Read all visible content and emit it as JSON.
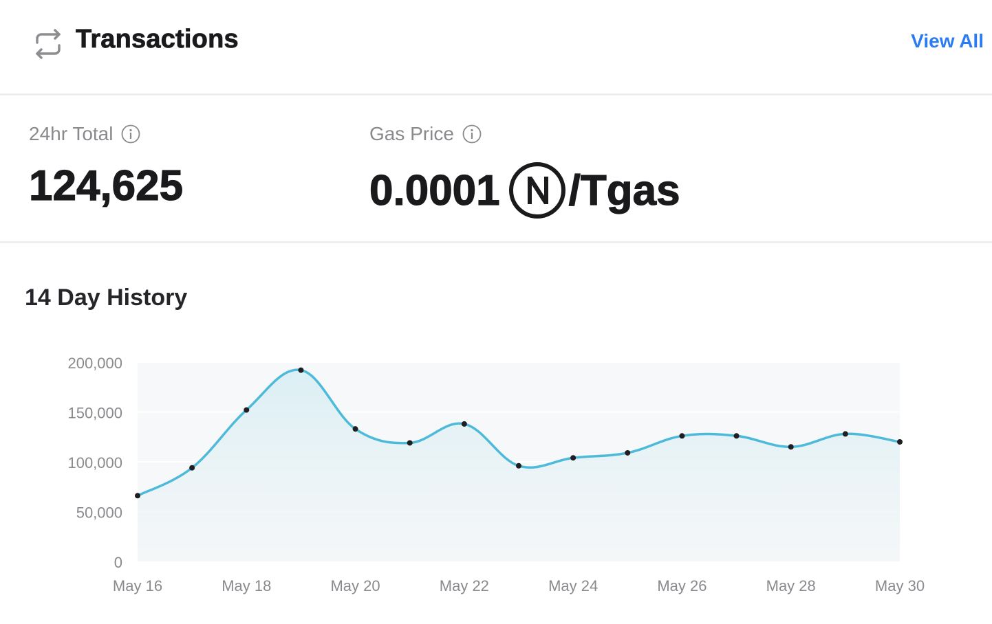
{
  "header": {
    "title": "Transactions",
    "view_all_label": "View All",
    "icon": "repeat-arrows-icon"
  },
  "stats": {
    "total": {
      "label": "24hr Total",
      "value": "124,625",
      "info_icon": "info-icon"
    },
    "gas": {
      "label": "Gas Price",
      "value": "0.0001",
      "unit": "/Tgas",
      "token_icon": "near-token-icon",
      "info_icon": "info-icon"
    }
  },
  "history": {
    "title": "14 Day History"
  },
  "colors": {
    "accent_link": "#2b7cf2",
    "line": "#4dbad9",
    "marker": "#1f1f22"
  },
  "chart_data": {
    "type": "area",
    "x": [
      "May 16",
      "May 17",
      "May 18",
      "May 19",
      "May 20",
      "May 21",
      "May 22",
      "May 23",
      "May 24",
      "May 25",
      "May 26",
      "May 27",
      "May 28",
      "May 29",
      "May 30"
    ],
    "values": [
      66000,
      94000,
      152000,
      192000,
      133000,
      119000,
      138000,
      96000,
      104000,
      109000,
      126000,
      126000,
      115000,
      128000,
      120000
    ],
    "xtick_labels": [
      "May 16",
      "May 18",
      "May 20",
      "May 22",
      "May 24",
      "May 26",
      "May 28",
      "May 30"
    ],
    "ytick_labels": [
      "0",
      "50,000",
      "100,000",
      "150,000",
      "200,000"
    ],
    "ylim": [
      0,
      200000
    ],
    "grid": true,
    "title": "",
    "xlabel": "",
    "ylabel": ""
  }
}
